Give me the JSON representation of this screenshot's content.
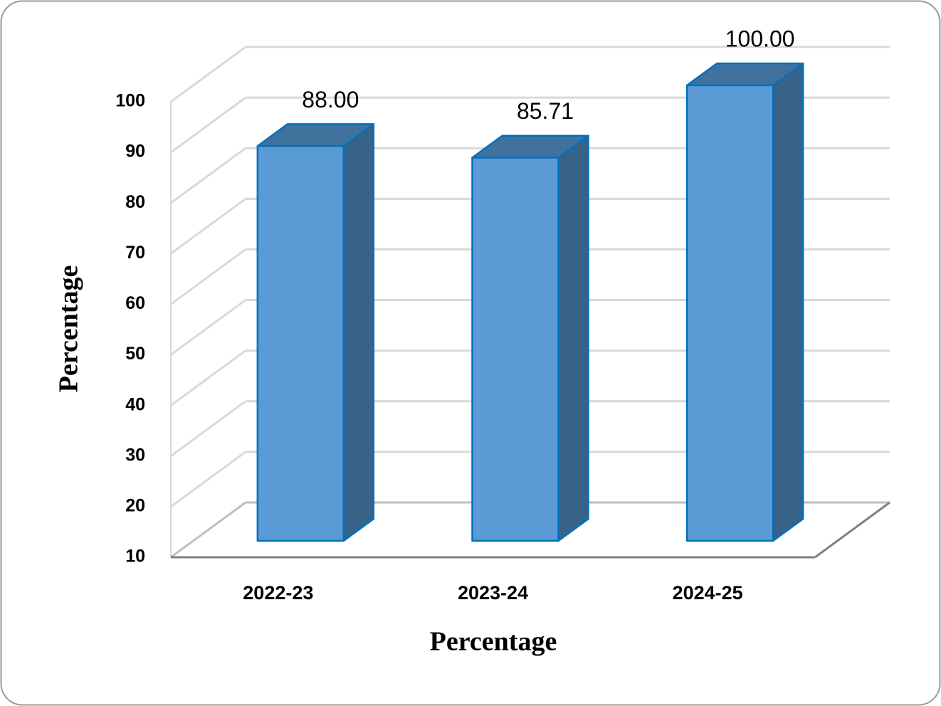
{
  "chart_data": {
    "type": "bar3d",
    "x_label": "Percentage",
    "y_label": "Percentage",
    "categories": [
      "2022-23",
      "2023-24",
      "2024-25"
    ],
    "values": [
      88,
      85.71,
      100
    ],
    "value_labels": [
      "88.00",
      "85.71",
      "100.00"
    ],
    "color": "#5b9bd5",
    "ylim": [
      10,
      100
    ],
    "yticks": [
      10,
      20,
      30,
      40,
      50,
      60,
      70,
      80,
      90,
      100
    ],
    "grid": true
  }
}
